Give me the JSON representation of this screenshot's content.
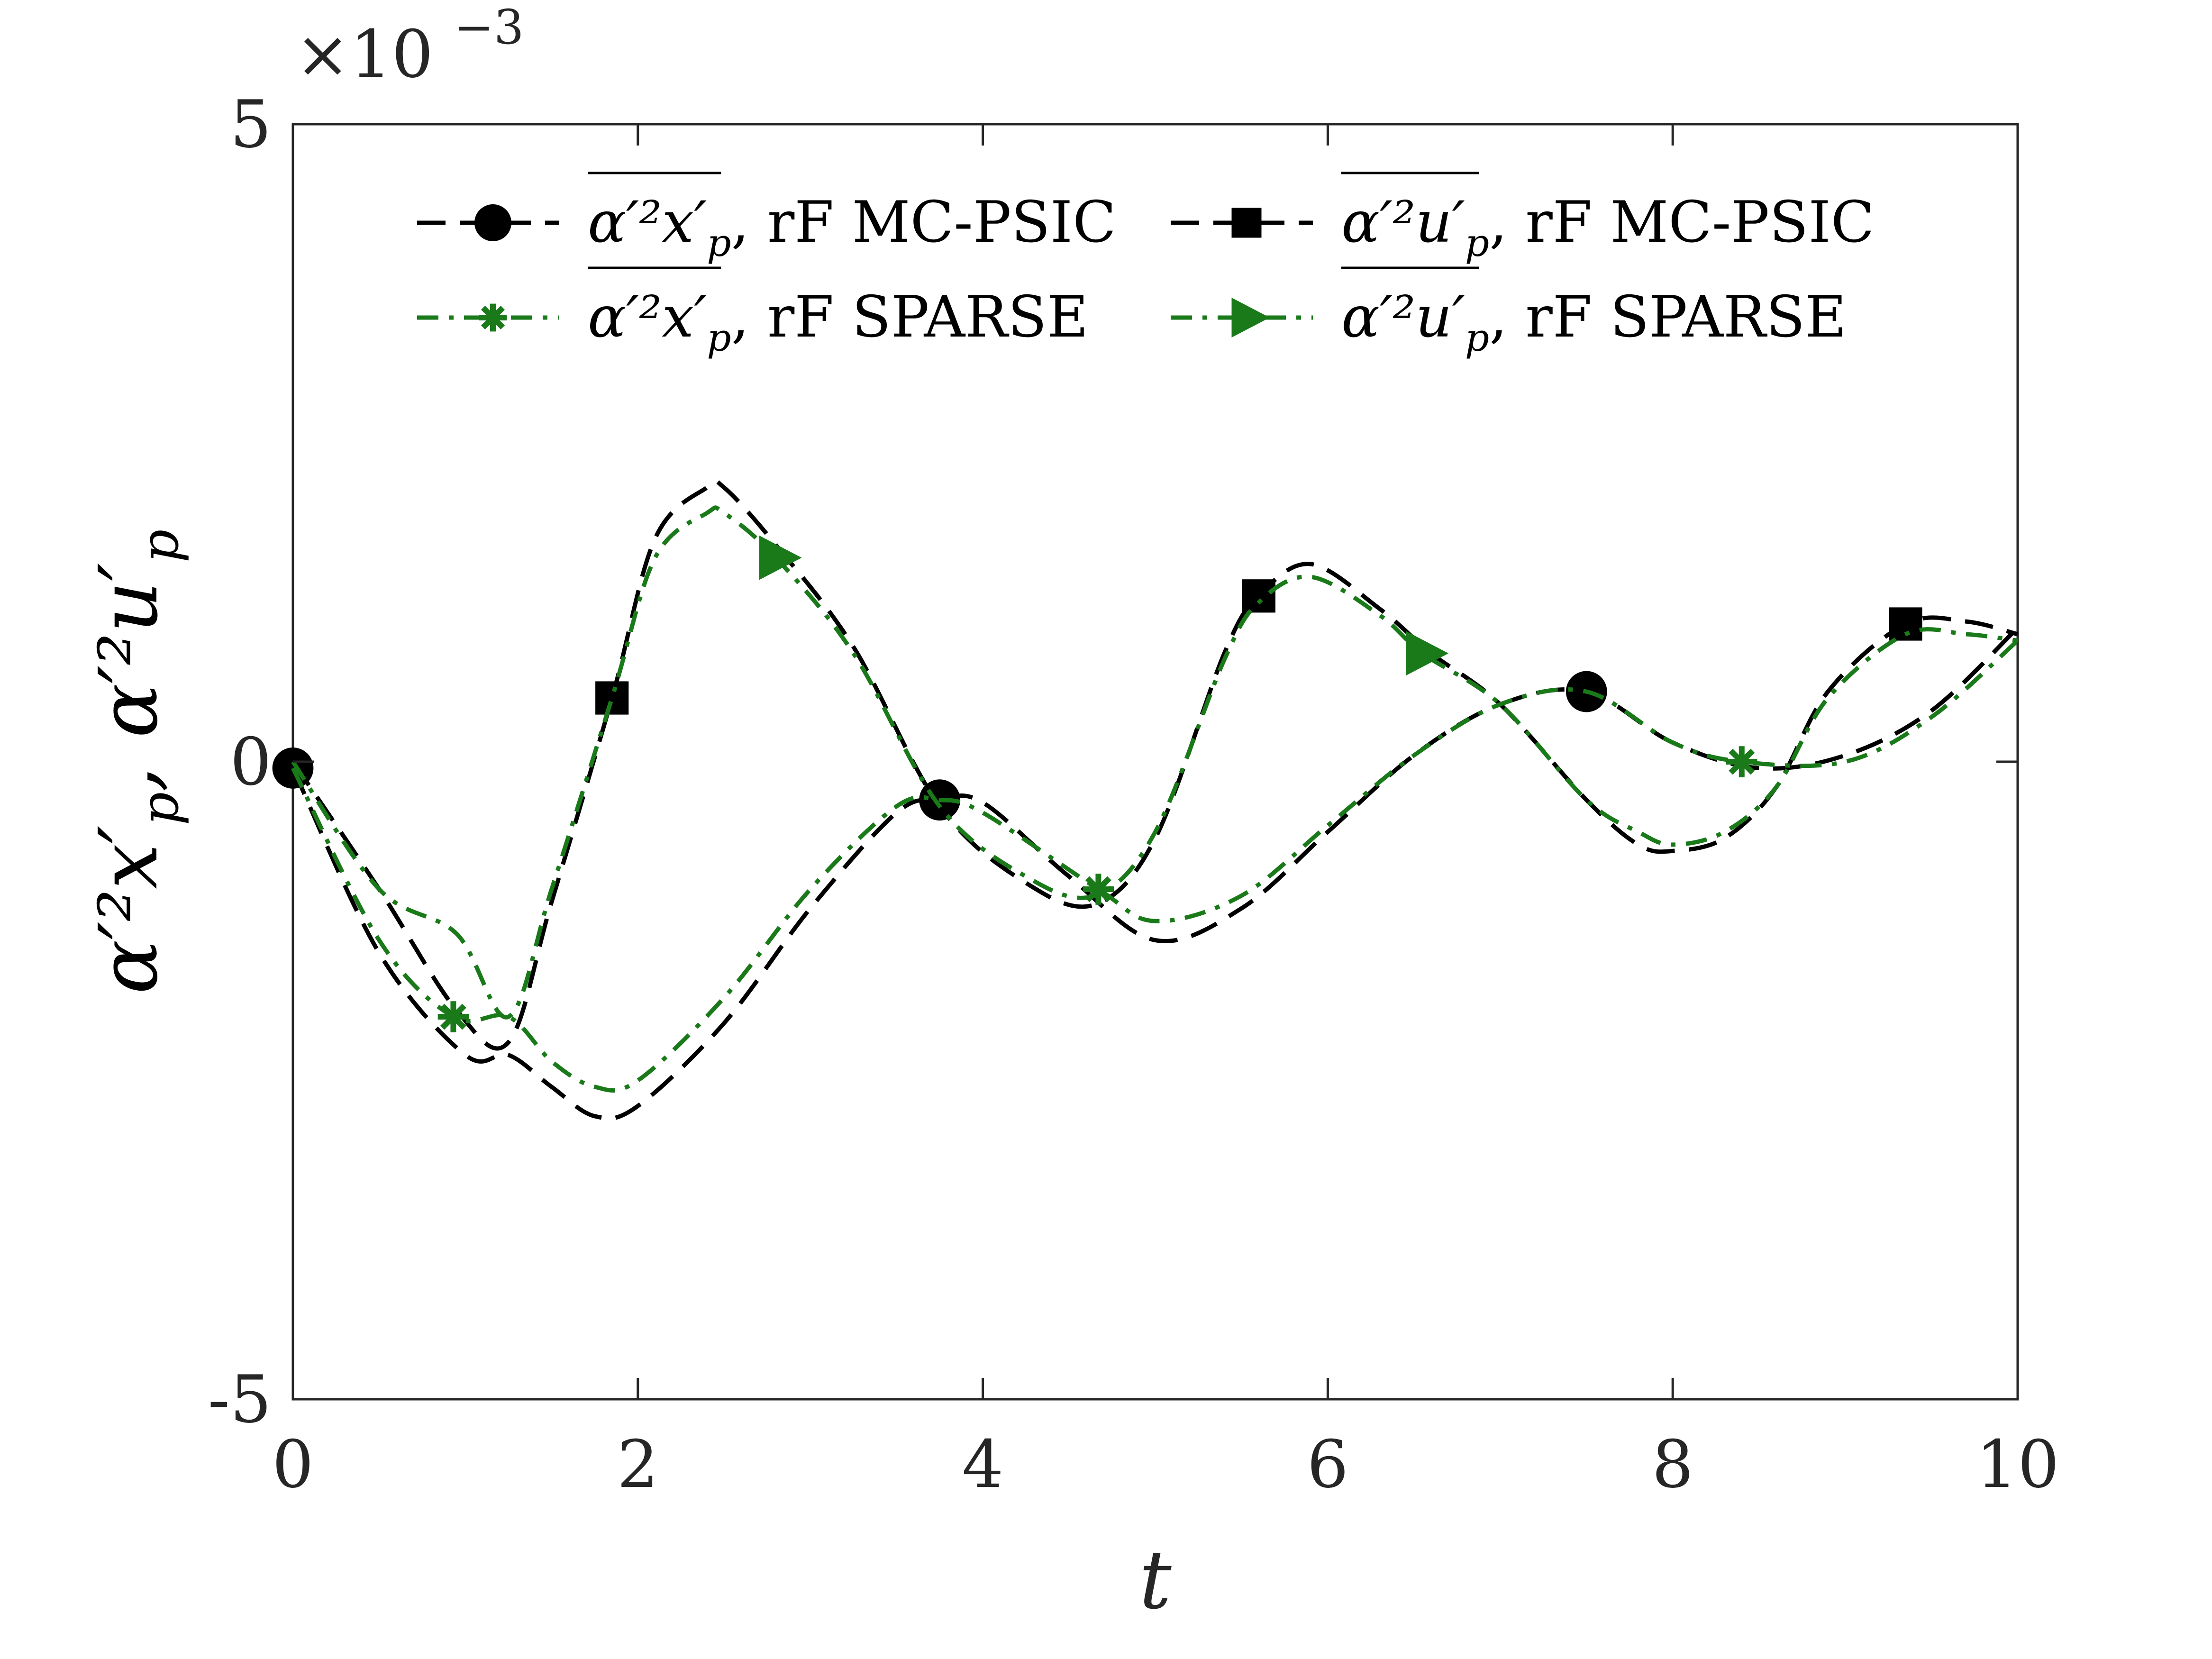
{
  "chart_data": {
    "type": "line",
    "xlabel": "t",
    "ylabel_parts": [
      "α′²x′",
      "p",
      ",",
      "α′²u′",
      "p"
    ],
    "exponent_label": [
      "×10",
      "−3"
    ],
    "xlim": [
      0,
      10
    ],
    "ylim": [
      -5,
      5
    ],
    "y_scale_factor": 0.001,
    "x_ticks": [
      0,
      2,
      4,
      6,
      8,
      10
    ],
    "y_ticks": [
      -5,
      0,
      5
    ],
    "x_tick_labels": [
      "0",
      "2",
      "4",
      "6",
      "8",
      "10"
    ],
    "y_tick_labels": [
      "-5",
      "0",
      "5"
    ],
    "grid": false,
    "legend_position": "top",
    "legend_columns": 2,
    "series": [
      {
        "name_parts": [
          "α′²x′",
          "p",
          ", rF MC-PSIC"
        ],
        "color": "#000000",
        "dash": "dash",
        "marker": "circle",
        "marker_x": [
          0,
          3.75,
          7.5
        ],
        "x": [
          0,
          0.5,
          1,
          1.25,
          1.5,
          1.75,
          2,
          2.5,
          3,
          3.5,
          3.75,
          4,
          4.5,
          5,
          5.5,
          6,
          6.5,
          7,
          7.5,
          8,
          8.5,
          9,
          9.5,
          10
        ],
        "y": [
          -0.05,
          -1.5,
          -2.3,
          -2.3,
          -2.55,
          -2.78,
          -2.7,
          -2.05,
          -1.15,
          -0.4,
          -0.3,
          -0.32,
          -0.9,
          -1.4,
          -1.15,
          -0.55,
          0.05,
          0.45,
          0.55,
          0.15,
          -0.05,
          0.05,
          0.4,
          1.05
        ]
      },
      {
        "name_parts": [
          "α′²u′",
          "p",
          ", rF MC-PSIC"
        ],
        "color": "#000000",
        "dash": "dash",
        "marker": "square",
        "marker_x": [
          1.85,
          5.6,
          9.35
        ],
        "x": [
          0,
          0.5,
          0.95,
          1.25,
          1.5,
          1.85,
          2.1,
          2.4,
          2.5,
          2.8,
          3.25,
          3.75,
          4.25,
          4.65,
          5,
          5.4,
          5.6,
          5.9,
          6.3,
          6.6,
          7,
          7.5,
          7.8,
          8,
          8.3,
          8.6,
          8.9,
          9.35,
          9.7,
          10
        ],
        "y": [
          0,
          -1.0,
          -1.95,
          -2.2,
          -1.1,
          0.5,
          1.75,
          2.15,
          2.15,
          1.7,
          0.9,
          -0.35,
          -0.95,
          -1.12,
          -0.6,
          0.85,
          1.3,
          1.55,
          1.2,
          0.85,
          0.45,
          -0.3,
          -0.65,
          -0.7,
          -0.6,
          -0.2,
          0.55,
          1.08,
          1.1,
          1.0
        ]
      },
      {
        "name_parts": [
          "α′²x′",
          "p",
          ", rF SPARSE"
        ],
        "color": "#1a7a1a",
        "dash": "dashdot",
        "marker": "asterisk",
        "marker_x": [
          0.93,
          4.67,
          8.4
        ],
        "x": [
          0,
          0.5,
          0.93,
          1.25,
          1.5,
          1.75,
          2,
          2.5,
          3,
          3.5,
          3.75,
          4,
          4.67,
          5,
          5.5,
          6,
          6.5,
          7,
          7.5,
          8,
          8.4,
          9,
          9.5,
          10
        ],
        "y": [
          -0.05,
          -1.4,
          -2.0,
          -2.0,
          -2.35,
          -2.55,
          -2.5,
          -1.85,
          -1.0,
          -0.35,
          -0.3,
          -0.4,
          -1.0,
          -1.25,
          -1.05,
          -0.5,
          0.05,
          0.45,
          0.55,
          0.15,
          0.0,
          0.0,
          0.35,
          0.95
        ]
      },
      {
        "name_parts": [
          "α′²u′",
          "p",
          ", rF SPARSE"
        ],
        "color": "#1a7a1a",
        "dash": "dashdot",
        "marker": "triangle-right",
        "marker_x": [
          2.8,
          6.55
        ],
        "x": [
          0,
          0.5,
          0.95,
          1.25,
          1.5,
          1.85,
          2.1,
          2.4,
          2.5,
          2.8,
          3.25,
          3.75,
          4.25,
          4.65,
          5,
          5.4,
          5.6,
          5.9,
          6.3,
          6.55,
          7,
          7.5,
          7.8,
          8,
          8.3,
          8.6,
          8.9,
          9.35,
          9.7,
          10
        ],
        "y": [
          0,
          -1.0,
          -1.35,
          -2.0,
          -1.0,
          0.5,
          1.6,
          1.95,
          1.95,
          1.6,
          0.85,
          -0.35,
          -0.9,
          -1.05,
          -0.55,
          0.8,
          1.25,
          1.45,
          1.15,
          0.85,
          0.45,
          -0.3,
          -0.55,
          -0.65,
          -0.55,
          -0.2,
          0.5,
          1.0,
          1.0,
          0.95
        ]
      }
    ]
  }
}
